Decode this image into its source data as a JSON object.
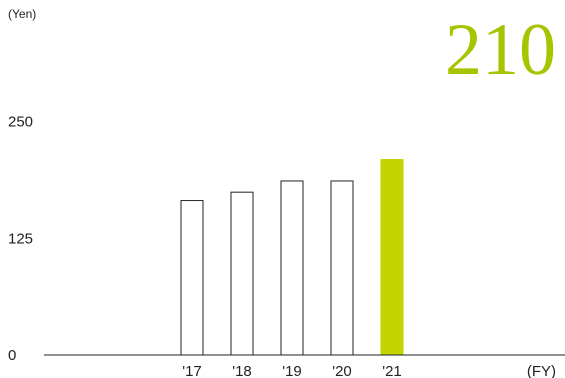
{
  "chart_data": {
    "type": "bar",
    "y_unit_label": "(Yen)",
    "x_unit_label": "(FY)",
    "headline_value": "210",
    "categories": [
      "'17",
      "'18",
      "'19",
      "'20",
      "'21"
    ],
    "values": [
      166,
      175,
      187,
      187,
      210
    ],
    "highlight_index": 4,
    "y_ticks": [
      "0",
      "125",
      "250"
    ],
    "ylim": [
      0,
      260
    ],
    "grid": false,
    "colors": {
      "highlight": "#c3d400",
      "bar_fill": "#ffffff",
      "bar_stroke": "#222222",
      "axis": "#222222",
      "headline": "#a8c300"
    }
  }
}
